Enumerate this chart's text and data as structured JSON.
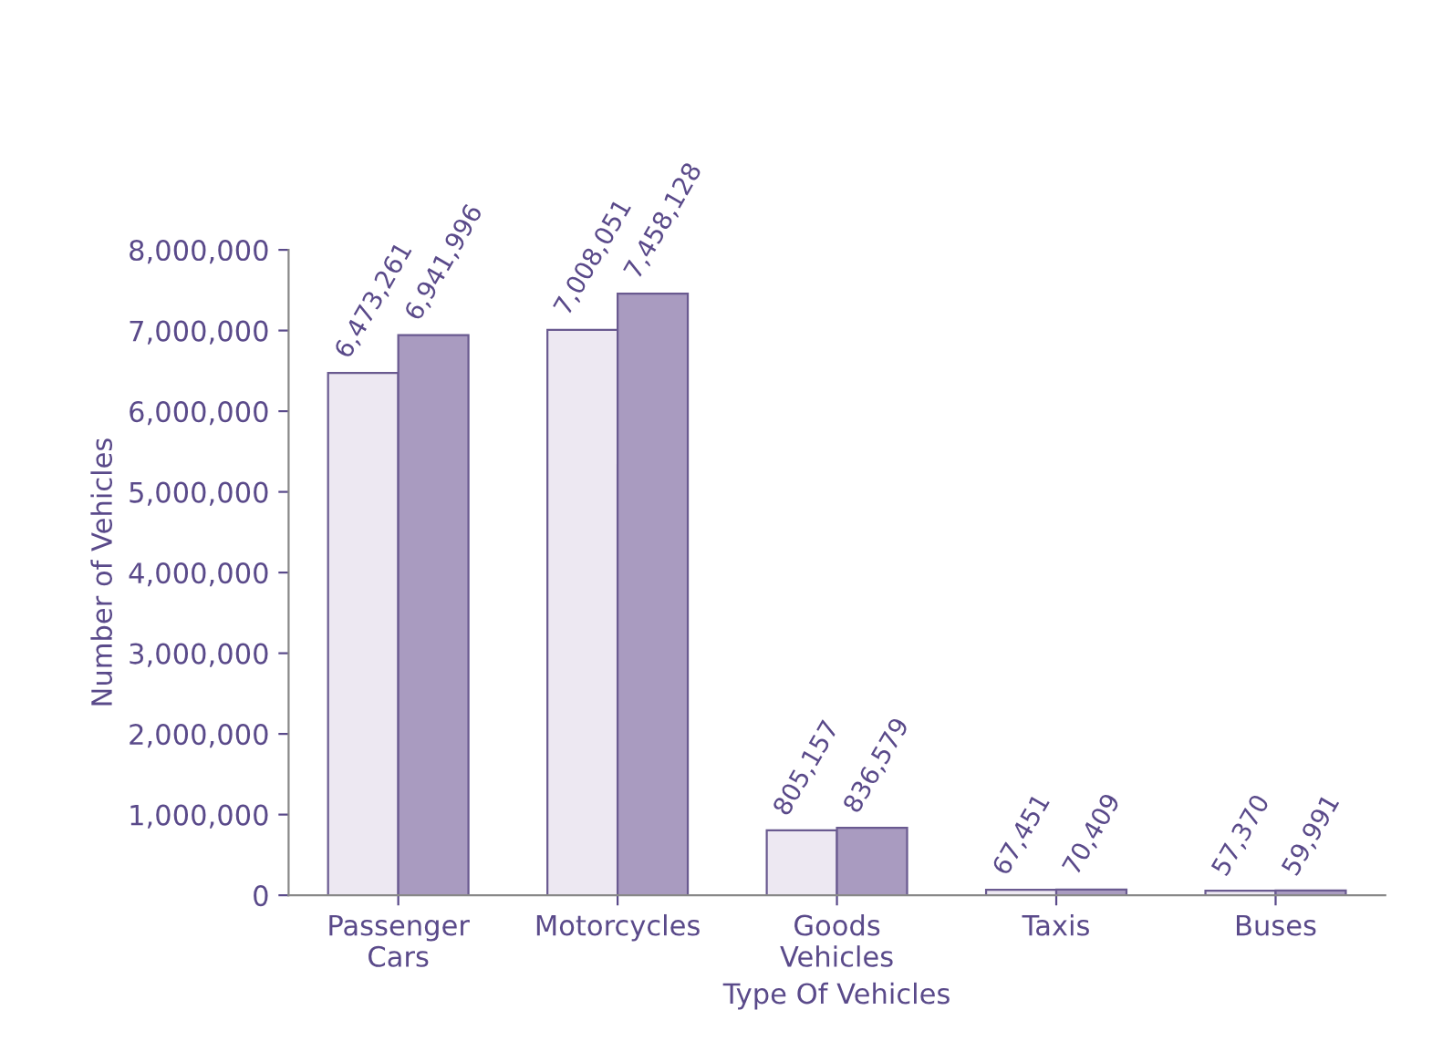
{
  "chart_data": {
    "type": "bar",
    "xlabel": "Type Of Vehicles",
    "ylabel": "Number of Vehicles",
    "categories": [
      "Passenger\nCars",
      "Motorcycles",
      "Goods\nVehicles",
      "Taxis",
      "Buses"
    ],
    "series": [
      {
        "color": "#ede8f2",
        "values": [
          6473261,
          7008051,
          805157,
          67451,
          57370
        ],
        "value_labels": [
          "6,473,261",
          "7,008,051",
          "805,157",
          "67,451",
          "57,370"
        ]
      },
      {
        "color": "#a99bc0",
        "values": [
          6941996,
          7458128,
          836579,
          70409,
          59991
        ],
        "value_labels": [
          "6,941,996",
          "7,458,128",
          "836,579",
          "70,409",
          "59,991"
        ]
      }
    ],
    "ylim": [
      0,
      8000000
    ],
    "yticks": [
      {
        "value": 0,
        "label": "0"
      },
      {
        "value": 1000000,
        "label": "1,000,000"
      },
      {
        "value": 2000000,
        "label": "2,000,000"
      },
      {
        "value": 3000000,
        "label": "3,000,000"
      },
      {
        "value": 4000000,
        "label": "4,000,000"
      },
      {
        "value": 5000000,
        "label": "5,000,000"
      },
      {
        "value": 6000000,
        "label": "6,000,000"
      },
      {
        "value": 7000000,
        "label": "7,000,000"
      },
      {
        "value": 8000000,
        "label": "8,000,000"
      }
    ],
    "grid": false,
    "legend": false
  }
}
